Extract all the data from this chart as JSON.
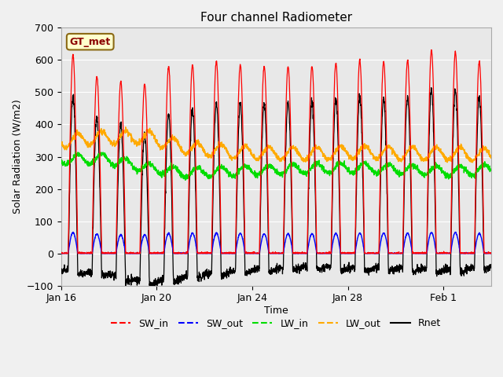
{
  "title": "Four channel Radiometer",
  "xlabel": "Time",
  "ylabel": "Solar Radiation (W/m2)",
  "ylim": [
    -100,
    700
  ],
  "annotation_text": "GT_met",
  "line_colors": {
    "SW_in": "#ff0000",
    "SW_out": "#0000ff",
    "LW_in": "#00dd00",
    "LW_out": "#ffaa00",
    "Rnet": "#000000"
  },
  "x_tick_labels": [
    "Jan 16",
    "Jan 20",
    "Jan 24",
    "Jan 28",
    "Feb 1"
  ],
  "x_tick_positions": [
    0,
    4,
    8,
    12,
    16
  ],
  "num_days": 18,
  "samples_per_day": 144,
  "day_amps_SW_in": [
    615,
    548,
    533,
    525,
    580,
    585,
    597,
    585,
    580,
    580,
    580,
    590,
    600,
    595,
    600,
    630,
    625,
    595
  ],
  "day_amps_SW_out": [
    65,
    60,
    58,
    58,
    62,
    63,
    63,
    62,
    61,
    61,
    61,
    62,
    63,
    63,
    63,
    65,
    65,
    62
  ],
  "LW_in_base": [
    290,
    295,
    265,
    250,
    255,
    260,
    265,
    265,
    260,
    255,
    260
  ],
  "LW_out_base": [
    347,
    360,
    360,
    325,
    315,
    310,
    310,
    315,
    310,
    310,
    305
  ],
  "plot_bg_color": "#e8e8e8",
  "fig_bg_color": "#f0f0f0",
  "grid_color": "#ffffff",
  "figsize": [
    6.4,
    4.8
  ],
  "dpi": 100
}
